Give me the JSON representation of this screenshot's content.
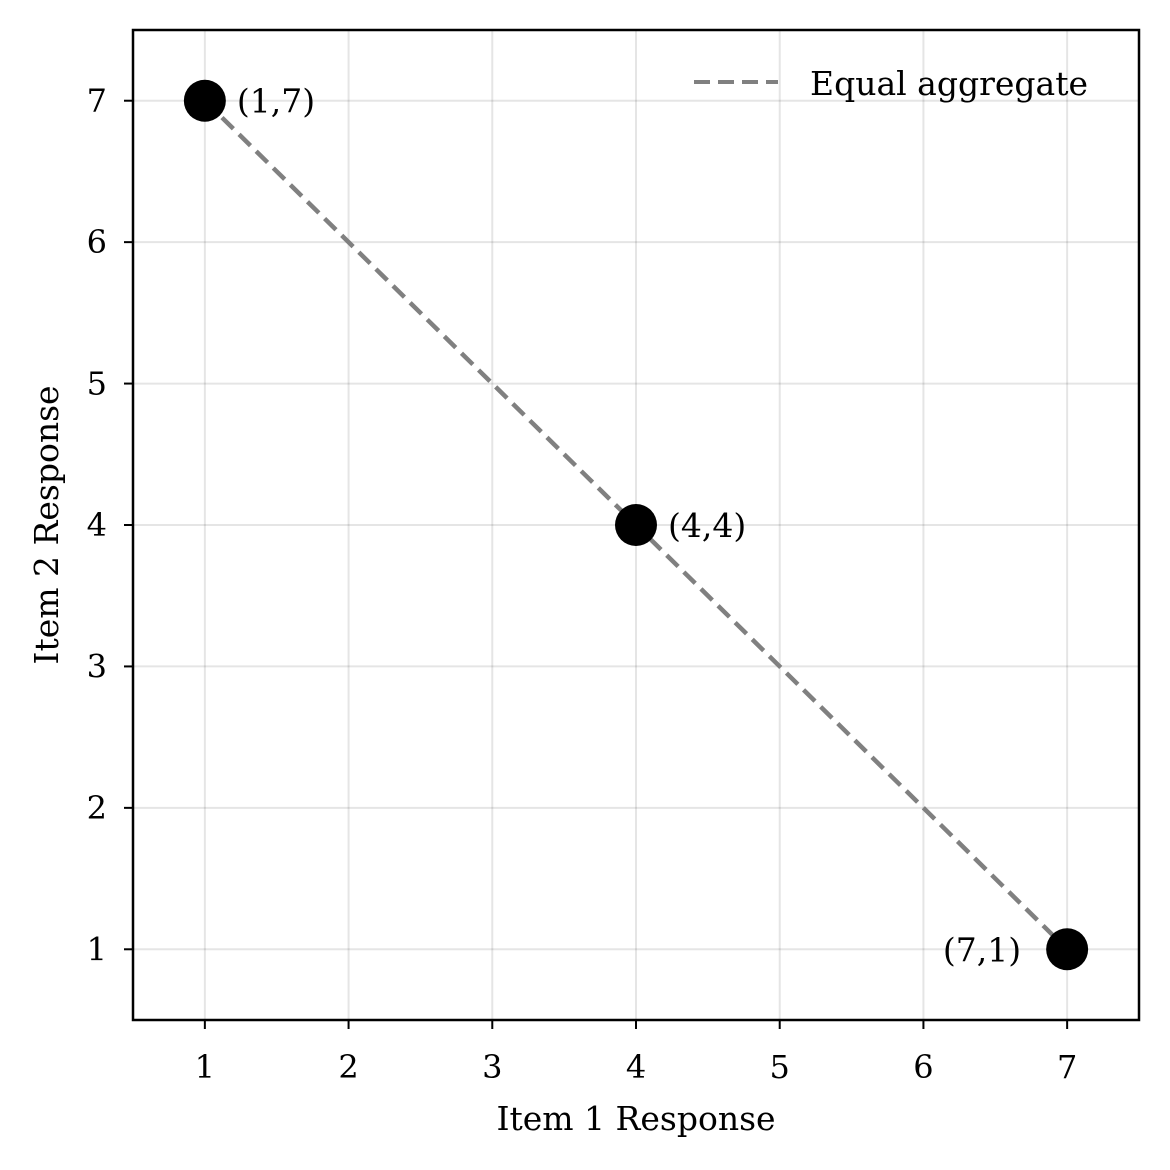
{
  "chart_data": {
    "type": "scatter",
    "title": "",
    "xlabel": "Item 1 Response",
    "ylabel": "Item 2 Response",
    "xlim": [
      0.5,
      7.5
    ],
    "ylim": [
      0.5,
      7.5
    ],
    "xticks": [
      1,
      2,
      3,
      4,
      5,
      6,
      7
    ],
    "yticks": [
      1,
      2,
      3,
      4,
      5,
      6,
      7
    ],
    "grid": true,
    "legend": {
      "location": "top-right",
      "entries": [
        "Equal aggregate"
      ]
    },
    "points": [
      {
        "x": 1,
        "y": 7,
        "label": "(1,7)",
        "label_side": "right"
      },
      {
        "x": 4,
        "y": 4,
        "label": "(4,4)",
        "label_side": "right"
      },
      {
        "x": 7,
        "y": 1,
        "label": "(7,1)",
        "label_side": "left"
      }
    ],
    "lines": [
      {
        "name": "Equal aggregate",
        "style": "dashed",
        "color": "#808080",
        "x": [
          1,
          7
        ],
        "y": [
          7,
          1
        ]
      }
    ],
    "colors": {
      "points": "#000000",
      "line": "#808080"
    }
  }
}
